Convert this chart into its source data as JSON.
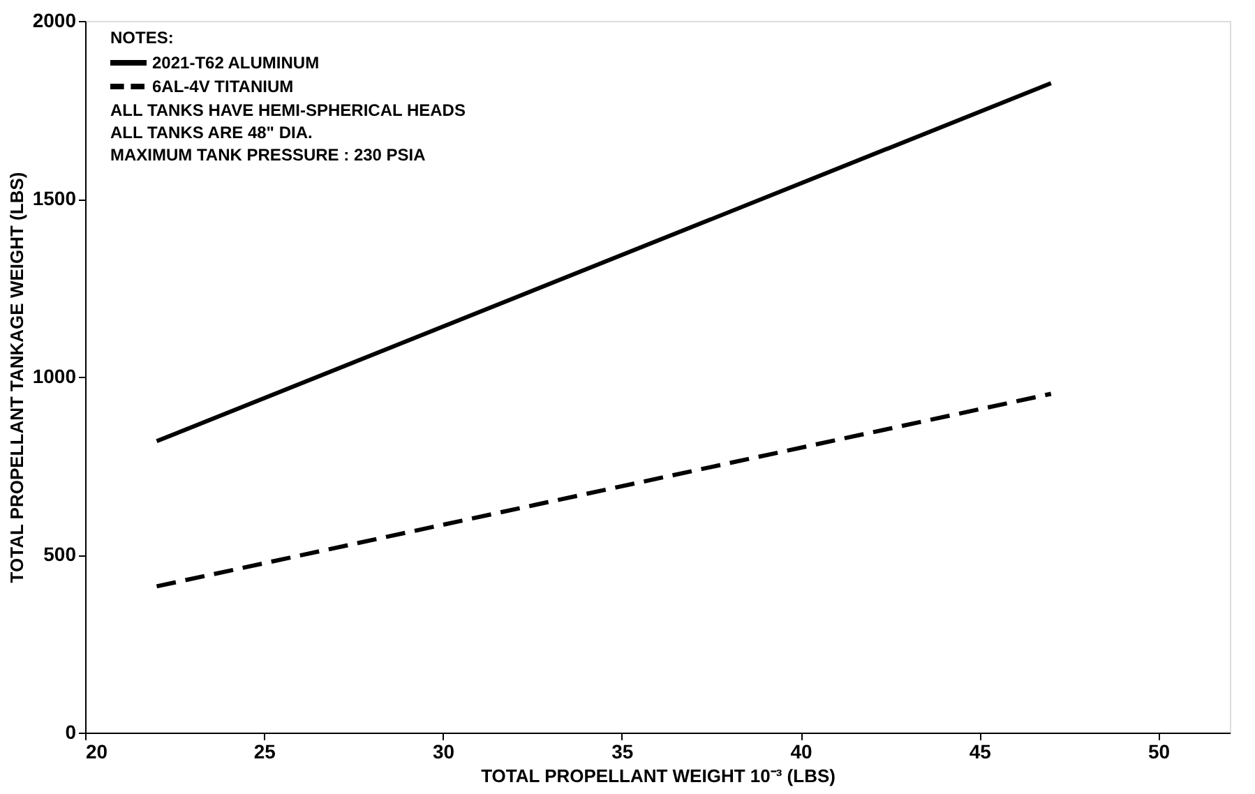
{
  "chart_data": {
    "type": "line",
    "xlabel": "TOTAL PROPELLANT WEIGHT 10⁻³ (LBS)",
    "ylabel": "TOTAL PROPELLANT TANKAGE WEIGHT (LBS)",
    "series": [
      {
        "name": "2021-T62 ALUMINUM",
        "color": "#000000",
        "line_style": "solid",
        "values": [
          819,
          1825
        ]
      },
      {
        "name": "6AL-4V TITANIUM",
        "color": "#000000",
        "line_style": "dashed",
        "values": [
          411,
          952
        ]
      }
    ],
    "x": [
      22,
      47
    ],
    "xlim": [
      20,
      52
    ],
    "xticks": [
      20,
      25,
      30,
      35,
      40,
      45,
      50
    ],
    "ylim": [
      0,
      2000
    ],
    "yticks": [
      0,
      500,
      1000,
      1500,
      2000
    ],
    "grid": false,
    "legend": "top left",
    "marker": "none",
    "annotations": [
      "NOTES:",
      "ALL TANKS HAVE HEMI-SPHERICAL HEADS",
      "ALL TANKS ARE 48\" DIA.",
      "MAXIMUM TANK PRESSURE : 230 PSIA"
    ]
  }
}
